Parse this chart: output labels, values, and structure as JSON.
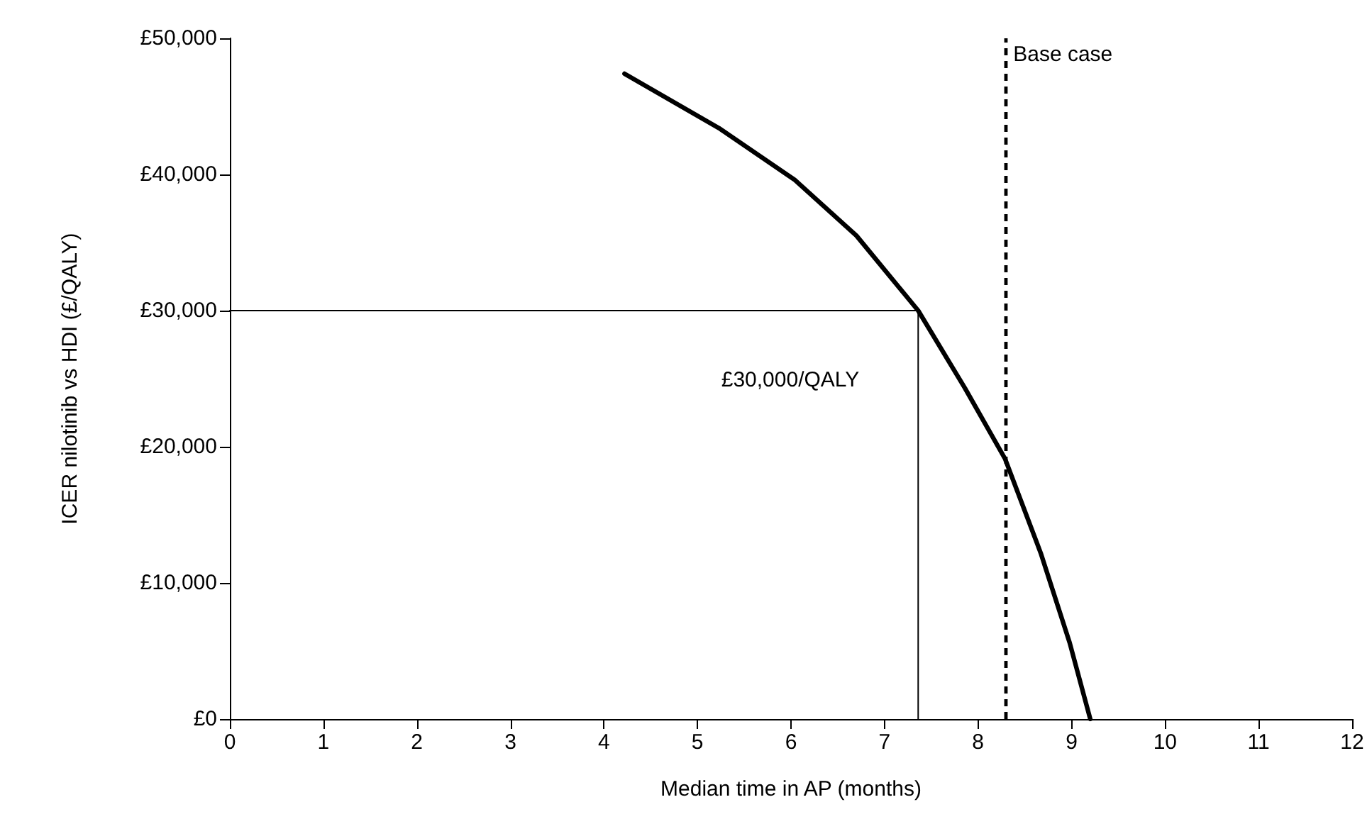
{
  "chart_data": {
    "type": "line",
    "xlabel": "Median time in AP (months)",
    "ylabel": "ICER nilotinib vs HDI (£/QALY)",
    "xlim": [
      0,
      12
    ],
    "xticks": [
      0,
      1,
      2,
      3,
      4,
      5,
      6,
      7,
      8,
      9,
      10,
      11,
      12
    ],
    "ylim": [
      0,
      50000
    ],
    "yticks": [
      {
        "value": 0,
        "label": "£0"
      },
      {
        "value": 10000,
        "label": "£10,000"
      },
      {
        "value": 20000,
        "label": "£20,000"
      },
      {
        "value": 30000,
        "label": "£30,000"
      },
      {
        "value": 40000,
        "label": "£40,000"
      },
      {
        "value": 50000,
        "label": "£50,000"
      }
    ],
    "grid": false,
    "marker": "none",
    "line_style": "solid",
    "series": [
      {
        "color": "#000000",
        "x": [
          4.22,
          5.23,
          6.04,
          6.7,
          7.36,
          7.86,
          8.29,
          8.67,
          8.98,
          9.2
        ],
        "values": [
          47400,
          43400,
          39600,
          35500,
          30000,
          24300,
          19100,
          12200,
          5600,
          0
        ]
      },
      {
        "color": "#000000",
        "x": [
          0,
          7.36,
          7.36
        ],
        "values": [
          30000,
          30000,
          0
        ]
      }
    ],
    "ref_lines": [
      {
        "axis": "x",
        "value": 8.3,
        "label": "Base case",
        "color": "#000000",
        "line_style": "dashed"
      }
    ],
    "annotations": [
      "£30,000/QALY"
    ]
  }
}
